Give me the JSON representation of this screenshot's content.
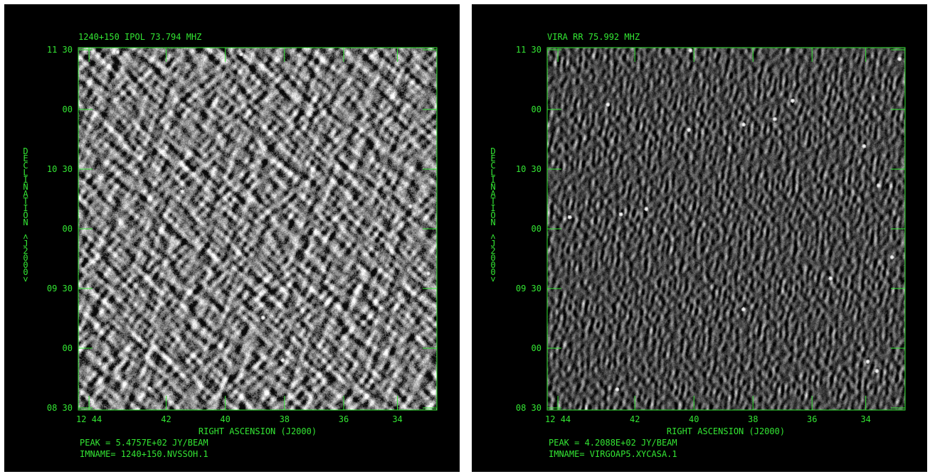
{
  "colors": {
    "annotation": "#33e633",
    "background": "#000000",
    "page": "#ffffff"
  },
  "panels": [
    {
      "header": "1240+150 IPOL  73.794 MHZ",
      "peak": "PEAK = 5.4757E+02 JY/BEAM",
      "imname": "IMNAME= 1240+150.NVSSOH.1",
      "noise_style": "blotchy",
      "noise_seed": 7
    },
    {
      "header": "VIRA RR  75.992 MHZ",
      "peak": "PEAK = 4.2088E+02 JY/BEAM",
      "imname": "IMNAME= VIRGOAP5.XYCASA.1",
      "noise_style": "fringes",
      "noise_seed": 13
    }
  ],
  "axes": {
    "ylabel": "DECLINATION (J2000)",
    "xlabel": "RIGHT ASCENSION (J2000)",
    "yticks": [
      "11 30",
      "00",
      "10 30",
      "00",
      "09 30",
      "00",
      "08 30"
    ],
    "xticks": [
      "12 44",
      "42",
      "40",
      "38",
      "36",
      "34"
    ]
  }
}
